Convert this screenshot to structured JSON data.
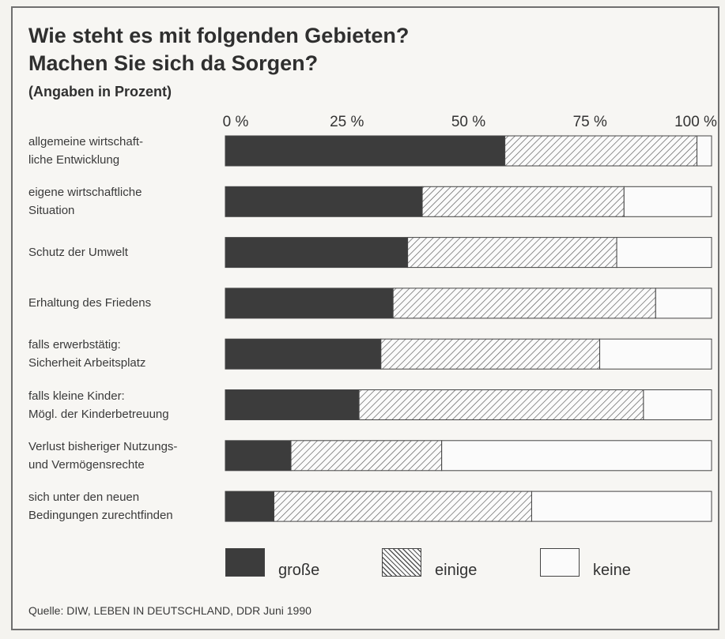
{
  "title_lines": [
    "Wie steht es mit folgenden Gebieten?",
    "Machen Sie sich da Sorgen?"
  ],
  "subtitle": "(Angaben in Prozent)",
  "source": "Quelle: DIW, LEBEN IN DEUTSCHLAND, DDR Juni 1990",
  "colors": {
    "grosse": "#3c3c3c",
    "einige_hatch": "#555555",
    "keine": "#fbfbfb",
    "border": "#444444"
  },
  "chart_data": {
    "type": "bar",
    "orientation": "horizontal",
    "stacked": true,
    "categories": [
      [
        "allgemeine wirtschaft-",
        "liche Entwicklung"
      ],
      [
        "eigene wirtschaftliche",
        "Situation"
      ],
      [
        "Schutz der Umwelt"
      ],
      [
        "Erhaltung des Friedens"
      ],
      [
        "falls erwerbstätig:",
        "Sicherheit Arbeitsplatz"
      ],
      [
        "falls kleine Kinder:",
        "Mögl. der Kinderbetreuung"
      ],
      [
        "Verlust bisheriger Nutzungs-",
        "und Vermögensrechte"
      ],
      [
        "sich unter den neuen",
        "Bedingungen zurechtfinden"
      ]
    ],
    "series": [
      {
        "name": "große",
        "pattern": "solid",
        "values": [
          57.5,
          40.5,
          37.5,
          34.5,
          32,
          27.5,
          13.5,
          10
        ]
      },
      {
        "name": "einige",
        "pattern": "hatch",
        "values": [
          39.5,
          41.5,
          43,
          54,
          45,
          58.5,
          31,
          53
        ]
      },
      {
        "name": "keine",
        "pattern": "empty",
        "values": [
          3,
          18,
          19.5,
          11.5,
          23,
          14,
          55.5,
          37
        ]
      }
    ],
    "xlim": [
      0,
      100
    ],
    "xticks": [
      "0 %",
      "25 %",
      "50 %",
      "75 %",
      "100 %"
    ],
    "legend_position": "bottom"
  }
}
